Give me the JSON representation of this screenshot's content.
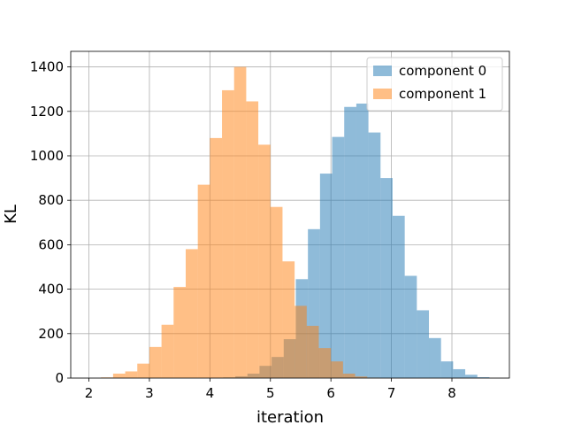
{
  "chart_data": {
    "type": "histogram",
    "title": "",
    "xlabel": "iteration",
    "ylabel": "KL",
    "xlim": [
      1.7,
      8.95
    ],
    "ylim": [
      0,
      1470
    ],
    "xticks": [
      2,
      3,
      4,
      5,
      6,
      7,
      8
    ],
    "yticks": [
      0,
      200,
      400,
      600,
      800,
      1000,
      1200,
      1400
    ],
    "grid": true,
    "legend": "top-right",
    "bin_width": 0.2,
    "series": [
      {
        "name": "component 0",
        "color": "#1f77b4",
        "opacity": 0.5,
        "bins": [
          {
            "x0": 4.02,
            "count": 1
          },
          {
            "x0": 4.22,
            "count": 3
          },
          {
            "x0": 4.42,
            "count": 8
          },
          {
            "x0": 4.62,
            "count": 20
          },
          {
            "x0": 4.82,
            "count": 55
          },
          {
            "x0": 5.02,
            "count": 95
          },
          {
            "x0": 5.22,
            "count": 175
          },
          {
            "x0": 5.42,
            "count": 445
          },
          {
            "x0": 5.62,
            "count": 670
          },
          {
            "x0": 5.82,
            "count": 920
          },
          {
            "x0": 6.02,
            "count": 1085
          },
          {
            "x0": 6.22,
            "count": 1220
          },
          {
            "x0": 6.42,
            "count": 1235
          },
          {
            "x0": 6.62,
            "count": 1105
          },
          {
            "x0": 6.82,
            "count": 900
          },
          {
            "x0": 7.02,
            "count": 730
          },
          {
            "x0": 7.22,
            "count": 460
          },
          {
            "x0": 7.42,
            "count": 305
          },
          {
            "x0": 7.62,
            "count": 180
          },
          {
            "x0": 7.82,
            "count": 75
          },
          {
            "x0": 8.02,
            "count": 40
          },
          {
            "x0": 8.22,
            "count": 15
          },
          {
            "x0": 8.42,
            "count": 4
          }
        ]
      },
      {
        "name": "component 1",
        "color": "#ff7f0e",
        "opacity": 0.5,
        "bins": [
          {
            "x0": 2.2,
            "count": 3
          },
          {
            "x0": 2.4,
            "count": 20
          },
          {
            "x0": 2.6,
            "count": 30
          },
          {
            "x0": 2.8,
            "count": 65
          },
          {
            "x0": 3.0,
            "count": 140
          },
          {
            "x0": 3.2,
            "count": 240
          },
          {
            "x0": 3.4,
            "count": 410
          },
          {
            "x0": 3.6,
            "count": 580
          },
          {
            "x0": 3.8,
            "count": 870
          },
          {
            "x0": 4.0,
            "count": 1080
          },
          {
            "x0": 4.2,
            "count": 1295
          },
          {
            "x0": 4.4,
            "count": 1400
          },
          {
            "x0": 4.6,
            "count": 1245
          },
          {
            "x0": 4.8,
            "count": 1050
          },
          {
            "x0": 5.0,
            "count": 770
          },
          {
            "x0": 5.2,
            "count": 525
          },
          {
            "x0": 5.4,
            "count": 325
          },
          {
            "x0": 5.6,
            "count": 235
          },
          {
            "x0": 5.8,
            "count": 135
          },
          {
            "x0": 6.0,
            "count": 75
          },
          {
            "x0": 6.2,
            "count": 20
          },
          {
            "x0": 6.4,
            "count": 7
          },
          {
            "x0": 6.6,
            "count": 2
          }
        ]
      }
    ]
  }
}
